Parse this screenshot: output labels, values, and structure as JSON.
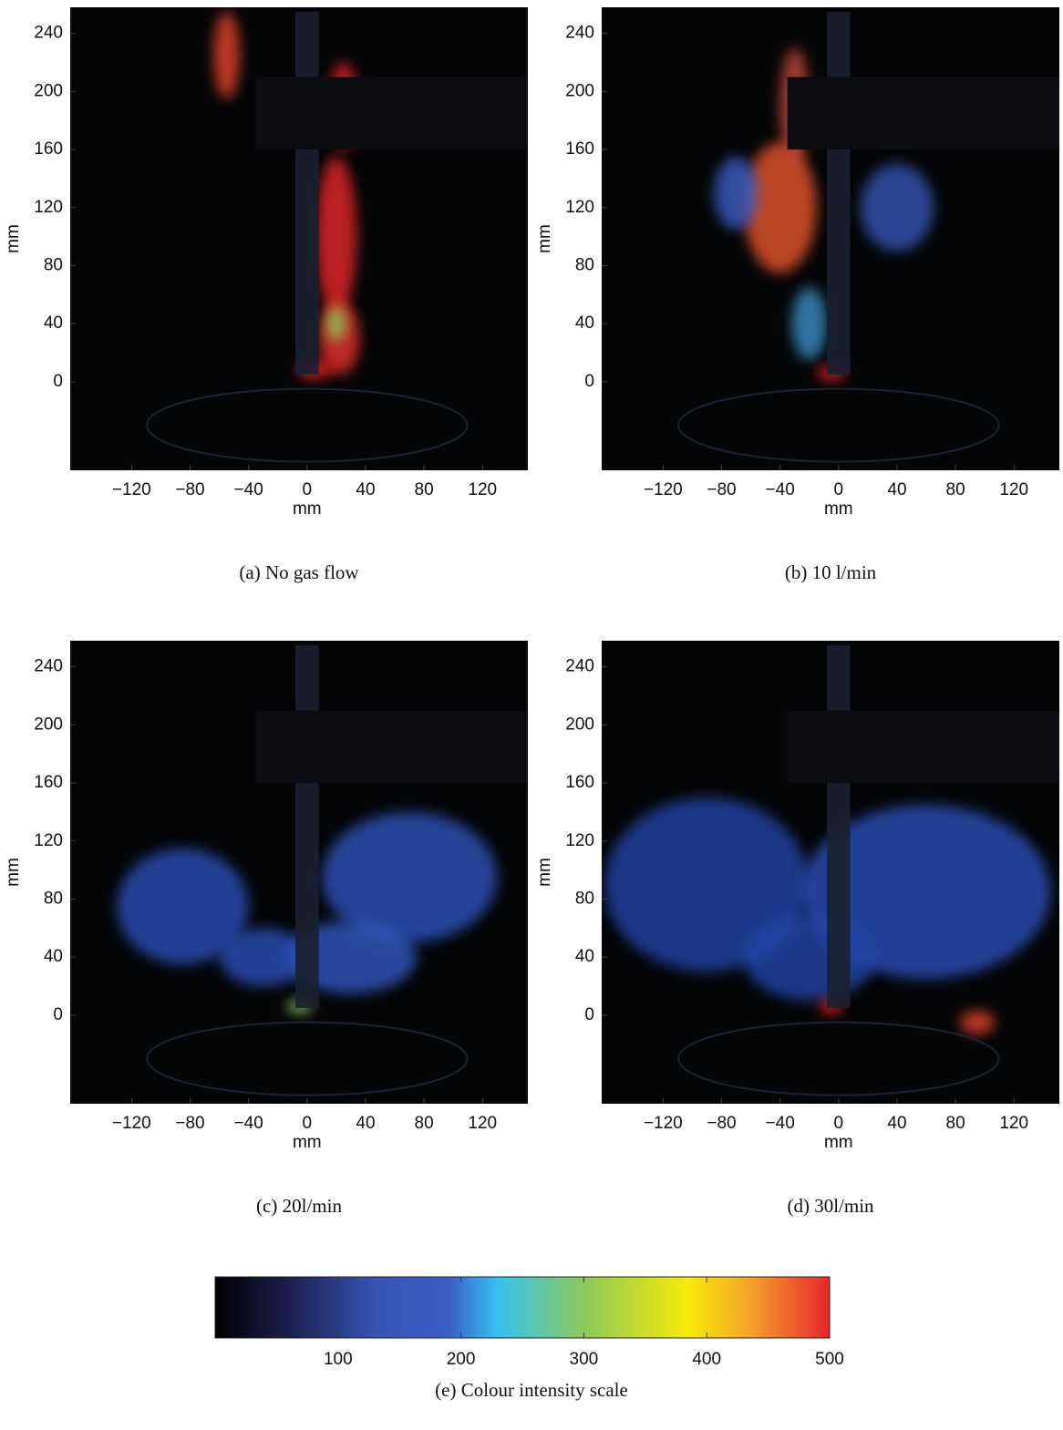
{
  "panels": [
    {
      "caption": "(a) No gas flow",
      "xlabel": "mm",
      "ylabel": "mm",
      "xlim": [
        -162,
        151
      ],
      "ylim": [
        -61,
        258
      ],
      "xticks": [
        {
          "value": -120,
          "label": "−120"
        },
        {
          "value": -80,
          "label": "−80"
        },
        {
          "value": -40,
          "label": "−40"
        },
        0,
        40,
        80,
        120
      ],
      "yticks": [
        0,
        40,
        80,
        120,
        160,
        200,
        240
      ]
    },
    {
      "caption": "(b) 10 l/min",
      "xlabel": "mm",
      "ylabel": "mm",
      "xlim": [
        -162,
        151
      ],
      "ylim": [
        -61,
        258
      ],
      "xticks": [
        {
          "value": -120,
          "label": "−120"
        },
        {
          "value": -80,
          "label": "−80"
        },
        {
          "value": -40,
          "label": "−40"
        },
        0,
        40,
        80,
        120
      ],
      "yticks": [
        0,
        40,
        80,
        120,
        160,
        200,
        240
      ]
    },
    {
      "caption": "(c) 20l/min",
      "xlabel": "mm",
      "ylabel": "mm",
      "xlim": [
        -162,
        151
      ],
      "ylim": [
        -61,
        258
      ],
      "xticks": [
        {
          "value": -120,
          "label": "−120"
        },
        {
          "value": -80,
          "label": "−80"
        },
        {
          "value": -40,
          "label": "−40"
        },
        0,
        40,
        80,
        120
      ],
      "yticks": [
        0,
        40,
        80,
        120,
        160,
        200,
        240
      ]
    },
    {
      "caption": "(d) 30l/min",
      "xlabel": "mm",
      "ylabel": "mm",
      "xlim": [
        -162,
        151
      ],
      "ylim": [
        -61,
        258
      ],
      "xticks": [
        {
          "value": -120,
          "label": "−120"
        },
        {
          "value": -80,
          "label": "−80"
        },
        {
          "value": -40,
          "label": "−40"
        },
        0,
        40,
        80,
        120
      ],
      "yticks": [
        0,
        40,
        80,
        120,
        160,
        200,
        240
      ]
    }
  ],
  "colorbar": {
    "clim": [
      0,
      500
    ],
    "ticks": [
      100,
      200,
      300,
      400,
      500
    ],
    "caption": "(e) Colour intensity scale"
  }
}
